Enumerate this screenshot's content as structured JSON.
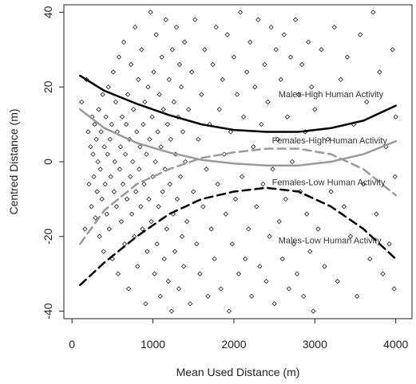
{
  "chart_data": {
    "type": "scatter",
    "xlabel": "Mean Used Distance (m)",
    "ylabel": "Centred Distance (m)",
    "xlim": [
      -100,
      4200
    ],
    "ylim": [
      -42,
      42
    ],
    "xticks": [
      {
        "value": 0,
        "label": "0"
      },
      {
        "value": 1000,
        "label": "1000"
      },
      {
        "value": 2000,
        "label": "2000"
      },
      {
        "value": 3000,
        "label": "3000"
      },
      {
        "value": 4000,
        "label": "4000"
      }
    ],
    "yticks": [
      {
        "value": -40,
        "label": "-40"
      },
      {
        "value": -20,
        "label": "-20"
      },
      {
        "value": 0,
        "label": "0"
      },
      {
        "value": 20,
        "label": "20"
      },
      {
        "value": 40,
        "label": "40"
      }
    ],
    "grid": false,
    "points": [
      [
        120,
        16
      ],
      [
        160,
        -18
      ],
      [
        180,
        22
      ],
      [
        200,
        8
      ],
      [
        210,
        -6
      ],
      [
        230,
        4
      ],
      [
        240,
        -12
      ],
      [
        250,
        12
      ],
      [
        260,
        2
      ],
      [
        270,
        -4
      ],
      [
        280,
        10
      ],
      [
        290,
        -15
      ],
      [
        300,
        6
      ],
      [
        310,
        -8
      ],
      [
        320,
        0
      ],
      [
        330,
        14
      ],
      [
        340,
        -20
      ],
      [
        350,
        -2
      ],
      [
        360,
        8
      ],
      [
        370,
        -10
      ],
      [
        380,
        18
      ],
      [
        390,
        -24
      ],
      [
        400,
        4
      ],
      [
        410,
        -6
      ],
      [
        420,
        12
      ],
      [
        430,
        -14
      ],
      [
        440,
        2
      ],
      [
        450,
        20
      ],
      [
        460,
        -18
      ],
      [
        470,
        6
      ],
      [
        480,
        -4
      ],
      [
        490,
        10
      ],
      [
        500,
        -26
      ],
      [
        510,
        24
      ],
      [
        520,
        -8
      ],
      [
        530,
        0
      ],
      [
        540,
        16
      ],
      [
        550,
        -12
      ],
      [
        560,
        8
      ],
      [
        570,
        -30
      ],
      [
        580,
        28
      ],
      [
        590,
        -2
      ],
      [
        600,
        4
      ],
      [
        610,
        -16
      ],
      [
        620,
        12
      ],
      [
        630,
        -6
      ],
      [
        640,
        32
      ],
      [
        650,
        -22
      ],
      [
        660,
        2
      ],
      [
        670,
        10
      ],
      [
        680,
        -10
      ],
      [
        690,
        18
      ],
      [
        700,
        -34
      ],
      [
        710,
        6
      ],
      [
        720,
        -4
      ],
      [
        730,
        26
      ],
      [
        740,
        -14
      ],
      [
        750,
        0
      ],
      [
        760,
        14
      ],
      [
        770,
        -20
      ],
      [
        780,
        36
      ],
      [
        790,
        -8
      ],
      [
        800,
        8
      ],
      [
        810,
        -28
      ],
      [
        820,
        22
      ],
      [
        830,
        -2
      ],
      [
        840,
        4
      ],
      [
        850,
        -12
      ],
      [
        860,
        30
      ],
      [
        870,
        -18
      ],
      [
        880,
        10
      ],
      [
        890,
        -6
      ],
      [
        900,
        16
      ],
      [
        910,
        -38
      ],
      [
        920,
        2
      ],
      [
        930,
        -24
      ],
      [
        940,
        20
      ],
      [
        950,
        -10
      ],
      [
        960,
        6
      ],
      [
        970,
        40
      ],
      [
        980,
        -16
      ],
      [
        990,
        12
      ],
      [
        1000,
        -4
      ],
      [
        1010,
        24
      ],
      [
        1020,
        -30
      ],
      [
        1030,
        0
      ],
      [
        1040,
        34
      ],
      [
        1050,
        -22
      ],
      [
        1060,
        8
      ],
      [
        1070,
        -12
      ],
      [
        1080,
        18
      ],
      [
        1090,
        -36
      ],
      [
        1100,
        4
      ],
      [
        1110,
        28
      ],
      [
        1120,
        -8
      ],
      [
        1130,
        14
      ],
      [
        1140,
        -26
      ],
      [
        1150,
        -2
      ],
      [
        1160,
        38
      ],
      [
        1170,
        -18
      ],
      [
        1180,
        10
      ],
      [
        1190,
        -32
      ],
      [
        1200,
        22
      ],
      [
        1210,
        -6
      ],
      [
        1220,
        6
      ],
      [
        1230,
        -40
      ],
      [
        1240,
        30
      ],
      [
        1250,
        -14
      ],
      [
        1260,
        16
      ],
      [
        1270,
        -24
      ],
      [
        1280,
        2
      ],
      [
        1290,
        36
      ],
      [
        1300,
        -10
      ],
      [
        1310,
        12
      ],
      [
        1320,
        -34
      ],
      [
        1330,
        26
      ],
      [
        1340,
        -4
      ],
      [
        1350,
        20
      ],
      [
        1360,
        -20
      ],
      [
        1370,
        8
      ],
      [
        1380,
        -28
      ],
      [
        1390,
        32
      ],
      [
        1400,
        0
      ],
      [
        1420,
        -16
      ],
      [
        1440,
        14
      ],
      [
        1460,
        -38
      ],
      [
        1480,
        24
      ],
      [
        1500,
        -8
      ],
      [
        1520,
        38
      ],
      [
        1540,
        -22
      ],
      [
        1560,
        6
      ],
      [
        1580,
        -30
      ],
      [
        1600,
        18
      ],
      [
        1620,
        -12
      ],
      [
        1640,
        30
      ],
      [
        1660,
        -2
      ],
      [
        1680,
        -36
      ],
      [
        1700,
        10
      ],
      [
        1720,
        -18
      ],
      [
        1740,
        26
      ],
      [
        1760,
        -26
      ],
      [
        1780,
        36
      ],
      [
        1800,
        -6
      ],
      [
        1820,
        14
      ],
      [
        1840,
        -34
      ],
      [
        1860,
        22
      ],
      [
        1880,
        2
      ],
      [
        1900,
        -14
      ],
      [
        1920,
        34
      ],
      [
        1940,
        -40
      ],
      [
        1960,
        8
      ],
      [
        1980,
        -22
      ],
      [
        2000,
        28
      ],
      [
        2020,
        -10
      ],
      [
        2040,
        18
      ],
      [
        2060,
        -30
      ],
      [
        2080,
        40
      ],
      [
        2100,
        -4
      ],
      [
        2120,
        12
      ],
      [
        2140,
        -26
      ],
      [
        2160,
        24
      ],
      [
        2180,
        -18
      ],
      [
        2200,
        32
      ],
      [
        2220,
        -36
      ],
      [
        2240,
        4
      ],
      [
        2260,
        20
      ],
      [
        2280,
        -12
      ],
      [
        2300,
        38
      ],
      [
        2320,
        -28
      ],
      [
        2340,
        10
      ],
      [
        2360,
        -6
      ],
      [
        2380,
        26
      ],
      [
        2400,
        -32
      ],
      [
        2420,
        16
      ],
      [
        2440,
        -20
      ],
      [
        2460,
        36
      ],
      [
        2480,
        -2
      ],
      [
        2500,
        -38
      ],
      [
        2520,
        30
      ],
      [
        2540,
        6
      ],
      [
        2560,
        -16
      ],
      [
        2580,
        22
      ],
      [
        2600,
        -26
      ],
      [
        2620,
        34
      ],
      [
        2640,
        -10
      ],
      [
        2660,
        12
      ],
      [
        2680,
        -34
      ],
      [
        2700,
        28
      ],
      [
        2720,
        0
      ],
      [
        2740,
        -22
      ],
      [
        2760,
        38
      ],
      [
        2780,
        -30
      ],
      [
        2800,
        18
      ],
      [
        2820,
        -8
      ],
      [
        2840,
        26
      ],
      [
        2860,
        -36
      ],
      [
        2880,
        8
      ],
      [
        2900,
        -14
      ],
      [
        2920,
        32
      ],
      [
        2940,
        -24
      ],
      [
        2960,
        20
      ],
      [
        2980,
        -40
      ],
      [
        3000,
        14
      ],
      [
        3040,
        -18
      ],
      [
        3080,
        30
      ],
      [
        3120,
        -28
      ],
      [
        3160,
        6
      ],
      [
        3200,
        -8
      ],
      [
        3240,
        36
      ],
      [
        3280,
        -32
      ],
      [
        3320,
        22
      ],
      [
        3360,
        -12
      ],
      [
        3400,
        28
      ],
      [
        3440,
        -20
      ],
      [
        3480,
        10
      ],
      [
        3520,
        -36
      ],
      [
        3560,
        34
      ],
      [
        3600,
        -6
      ],
      [
        3640,
        16
      ],
      [
        3680,
        -26
      ],
      [
        3720,
        40
      ],
      [
        3760,
        -14
      ],
      [
        3800,
        24
      ],
      [
        3840,
        -30
      ],
      [
        3880,
        4
      ],
      [
        3920,
        -22
      ],
      [
        3960,
        30
      ],
      [
        3980,
        -34
      ],
      [
        4000,
        12
      ],
      [
        3990,
        -4
      ]
    ],
    "series": [
      {
        "name": "Males-High Human Activity",
        "stroke": "#000000",
        "dash": "solid",
        "width": 2.5,
        "x": [
          100,
          400,
          800,
          1200,
          1600,
          2000,
          2400,
          2800,
          3200,
          3600,
          4000
        ],
        "y": [
          23,
          19,
          15.5,
          12.5,
          10,
          8.5,
          8,
          8,
          9,
          11,
          15
        ]
      },
      {
        "name": "Females-High Human Activity",
        "stroke": "#9a9a9a",
        "dash": "solid",
        "width": 2.5,
        "x": [
          100,
          400,
          800,
          1200,
          1600,
          2000,
          2400,
          2800,
          3200,
          3600,
          4000
        ],
        "y": [
          14,
          9,
          5,
          2.5,
          0.5,
          -0.5,
          -1,
          -1,
          0,
          2,
          5.5
        ]
      },
      {
        "name": "Females-Low Human Activity",
        "stroke": "#9a9a9a",
        "dash": "dashed",
        "width": 2.5,
        "x": [
          100,
          400,
          800,
          1200,
          1600,
          2000,
          2400,
          2800,
          3200,
          3600,
          4000
        ],
        "y": [
          -22,
          -13,
          -6,
          -2,
          1,
          2.5,
          3.5,
          3.5,
          2,
          -2,
          -9
        ]
      },
      {
        "name": "Males-Low Human Activity",
        "stroke": "#000000",
        "dash": "dashed",
        "width": 2.5,
        "x": [
          100,
          400,
          800,
          1200,
          1600,
          2000,
          2400,
          2800,
          3200,
          3600,
          4000
        ],
        "y": [
          -33,
          -27,
          -20,
          -14,
          -10,
          -8,
          -7,
          -8,
          -12,
          -18,
          -26
        ]
      }
    ],
    "line_labels": [
      {
        "text": "Males-High Human Activity",
        "x": 2550,
        "y": 17.3
      },
      {
        "text": "Females-High Human Activity",
        "x": 2470,
        "y": 4.9
      },
      {
        "text": "Females-Low Human Activity",
        "x": 2470,
        "y": -6.3
      },
      {
        "text": "Males-Low Human Activity",
        "x": 2550,
        "y": -21.9
      }
    ]
  }
}
